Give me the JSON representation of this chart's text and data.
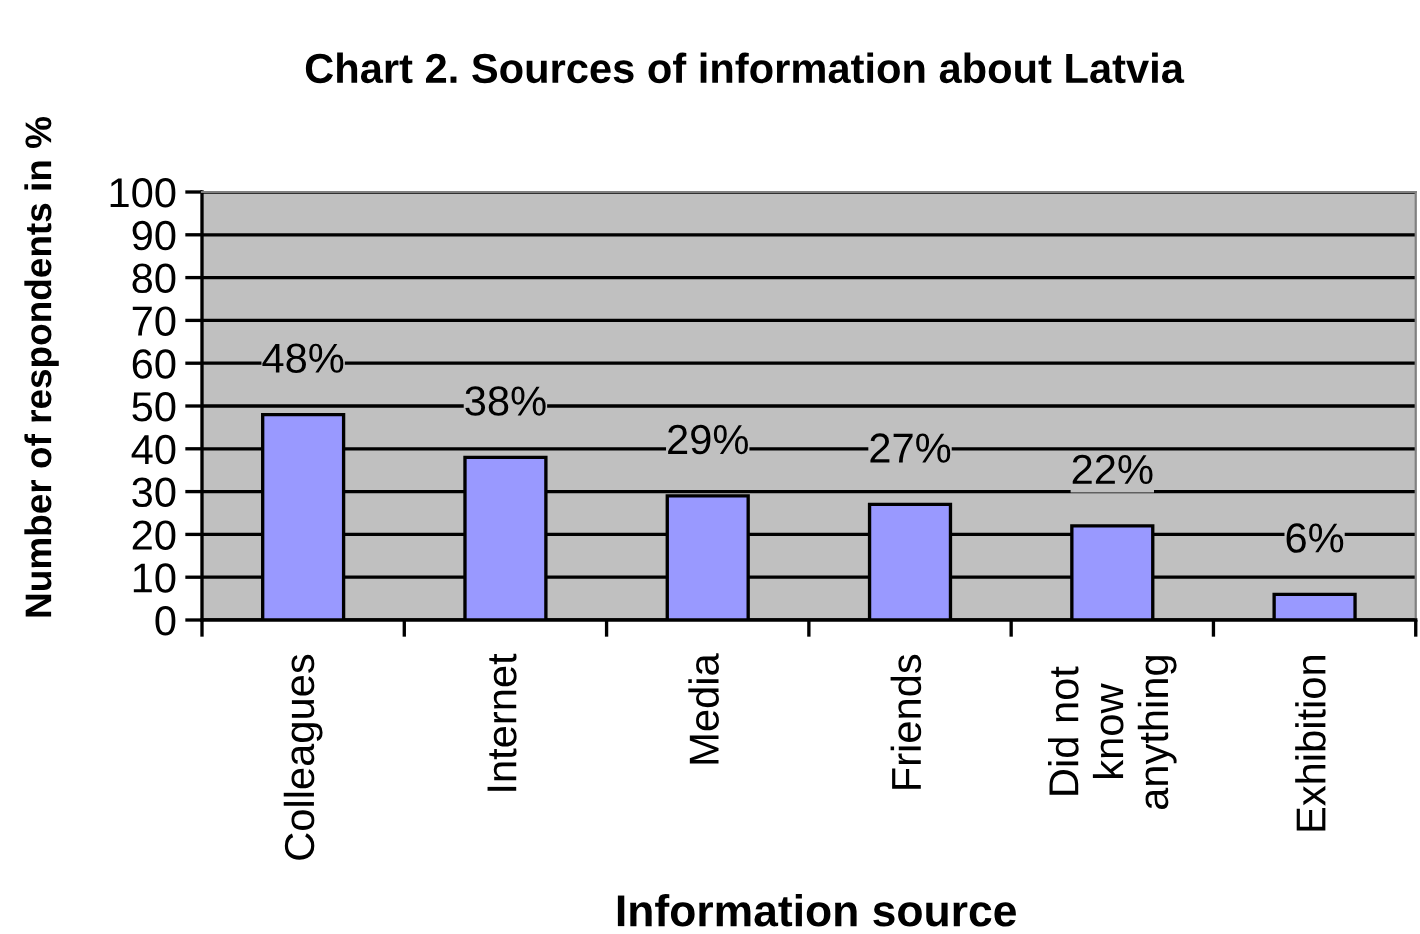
{
  "chart_data": {
    "type": "bar",
    "title": "Chart 2. Sources of information about Latvia",
    "xlabel": "Information source",
    "ylabel": "Number of respondents in %",
    "categories": [
      "Colleagues",
      "Internet",
      "Media",
      "Friends",
      "Did not\nknow\nanything",
      "Exhibition"
    ],
    "values": [
      48,
      38,
      29,
      27,
      22,
      6
    ],
    "value_labels": [
      "48%",
      "38%",
      "29%",
      "27%",
      "22%",
      "6%"
    ],
    "color": "#9999ff",
    "ylim": [
      0,
      100
    ],
    "yticks": [
      0,
      10,
      20,
      30,
      40,
      50,
      60,
      70,
      80,
      90,
      100
    ],
    "grid": "y",
    "legend": false
  }
}
